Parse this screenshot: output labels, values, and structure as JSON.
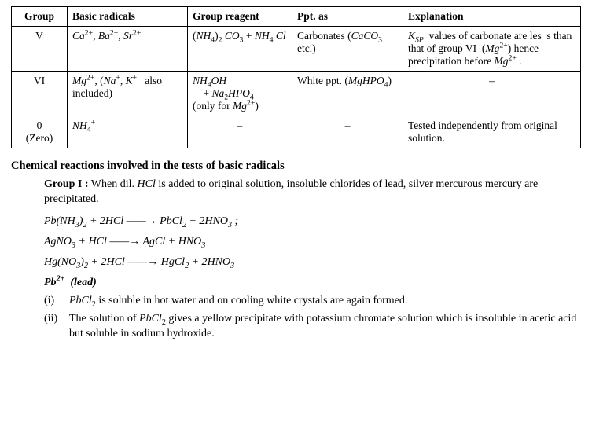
{
  "table": {
    "headers": [
      "Group",
      "Basic radicals",
      "Group reagent",
      "Ppt. as",
      "Explanation"
    ],
    "rows": [
      {
        "group": "V",
        "radicals": "<i>Ca</i><sup>2+</sup>, <i>Ba</i><sup>2+</sup>, <i>Sr</i><sup>2+</sup>",
        "reagent": "(<i>NH</i><sub>4</sub>)<sub>2</sub> <i>CO</i><sub>3</sub> + <i>NH</i><sub>4</sub> <i>Cl</i>",
        "ppt": "Carbonates (<i>CaCO</i><sub>3</sub> etc.)",
        "expl": "<i>K<sub>SP</sub></i>&nbsp; values of carbonate are les&nbsp; s than that of group VI&nbsp; (<i>Mg</i><sup>2+</sup>) hence precipitation before <i>Mg</i><sup>2+</sup> ."
      },
      {
        "group": "VI",
        "radicals": "<i>Mg</i><sup>2+</sup>, (<i>Na</i><sup>+</sup>, <i>K</i><sup>+</sup>&nbsp;&nbsp; also included)",
        "reagent": "<i>NH</i><sub>4</sub><i>OH</i><br>&nbsp;&nbsp;&nbsp;&nbsp;+ <i>Na</i><sub>2</sub><i>HPO</i><sub>4</sub><br>(only for <i>Mg</i><sup>2+</sup>)",
        "ppt": "White ppt. (<i>MgHPO</i><sub>4</sub>)",
        "expl": "–",
        "expl_center": true
      },
      {
        "group": "0<br>(Zero)",
        "radicals": "<i>NH</i><sub>4</sub><sup>+</sup>",
        "reagent": "–",
        "reagent_center": true,
        "ppt": "–",
        "ppt_center": true,
        "expl": "Tested independently from original solution."
      }
    ]
  },
  "heading": "Chemical reactions involved in the tests of basic radicals",
  "group1": {
    "intro_lead": "Group I :",
    "intro_text": "When dil. <i>HCl</i> is added to original solution, insoluble chlorides of lead, silver mercurous mercury are precipitated.",
    "eqn1": "<i>Pb</i>(<i>NH</i><sub>3</sub>)<sub>2</sub> + 2<i>HCl</i> ——→ <i>PbCl</i><sub>2</sub> + 2<i>HNO</i><sub>3</sub> ;",
    "eqn2": "<i>AgNO</i><sub>3</sub> + <i>HCl</i> ——→ <i>AgCl</i> + <i>HNO</i><sub>3</sub>",
    "eqn3": "<i>Hg</i>(<i>NO</i><sub>3</sub>)<sub>2</sub> + 2<i>HCl</i> ——→ <i>HgCl</i><sub>2</sub> + 2<i>HNO</i><sub>3</sub>",
    "pb_head": "Pb<sup>2+</sup>&nbsp; (lead)",
    "items": [
      {
        "num": "(i)",
        "text": "<i>PbCl</i><sub>2</sub> is soluble in hot water and on cooling white crystals are again formed."
      },
      {
        "num": "(ii)",
        "text": "The solution of <i>PbCl</i><sub>2</sub> gives a yellow precipitate with potassium chromate solution which is insoluble in acetic acid but soluble in sodium hydroxide."
      }
    ]
  }
}
